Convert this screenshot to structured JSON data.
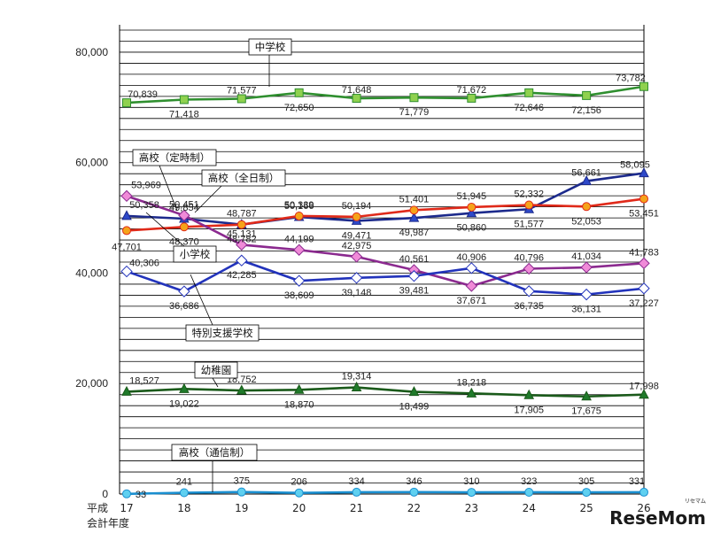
{
  "chart_data": {
    "type": "line",
    "title": "",
    "xlabel": "会計年度",
    "ylabel": "",
    "x_prefix": "平成",
    "categories": [
      "17",
      "18",
      "19",
      "20",
      "21",
      "22",
      "23",
      "24",
      "25",
      "26"
    ],
    "ylim": [
      0,
      84000
    ],
    "yticks": [
      0,
      20000,
      40000,
      60000,
      80000
    ],
    "ytick_labels": [
      "0",
      "20,000",
      "40,000",
      "60,000",
      "80,000"
    ],
    "grid": true,
    "series": [
      {
        "name": "中学校",
        "color": "#2f8f2f",
        "marker": "square",
        "marker_fill": "#8fd14f",
        "values": [
          70839,
          71418,
          71577,
          72650,
          71648,
          71779,
          71672,
          72646,
          72156,
          73782
        ],
        "labels": [
          "70,839",
          "71,418",
          "71,577",
          "72,650",
          "71,648",
          "71,779",
          "71,672",
          "72,646",
          "72,156",
          "73,782"
        ]
      },
      {
        "name": "高校（定時制）",
        "color": "#1c2a8c",
        "marker": "triangle",
        "marker_fill": "#2e49c9",
        "values": [
          50358,
          49854,
          48787,
          50166,
          49471,
          49987,
          50860,
          51577,
          56661,
          58095
        ],
        "labels": [
          "50,358",
          "49,854",
          "48,787",
          "50,166",
          "49,471",
          "49,987",
          "50,860",
          "51,577",
          "56,661",
          "58,095"
        ]
      },
      {
        "name": "高校（全日制）",
        "color": "#e02a1a",
        "marker": "circle",
        "marker_fill": "#f5a31a",
        "values": [
          47701,
          48370,
          48782,
          50339,
          50194,
          51401,
          51945,
          52332,
          52053,
          53451
        ],
        "labels": [
          "47,701",
          "48,370",
          "48,782",
          "50,339",
          "50,194",
          "51,401",
          "51,945",
          "52,332",
          "52,053",
          "53,451"
        ]
      },
      {
        "name": "小学校",
        "color": "#8b2a8f",
        "marker": "diamond",
        "marker_fill": "#f08ad8",
        "values": [
          53969,
          50451,
          45131,
          44199,
          42975,
          40561,
          37671,
          40796,
          41034,
          41783
        ],
        "labels": [
          "53,969",
          "50,451",
          "45,131",
          "44,199",
          "42,975",
          "40,561",
          "37,671",
          "40,796",
          "41,034",
          "41,783"
        ]
      },
      {
        "name": "特別支援学校",
        "color": "#2233bb",
        "marker": "diamond",
        "marker_fill": "#ffffff",
        "values": [
          40306,
          36686,
          42285,
          38609,
          39148,
          39481,
          40906,
          36735,
          36131,
          37227
        ],
        "labels": [
          "40,306",
          "36,686",
          "42,285",
          "38,609",
          "39,148",
          "39,481",
          "40,906",
          "36,735",
          "36,131",
          "37,227"
        ]
      },
      {
        "name": "幼稚園",
        "color": "#1a5a1a",
        "marker": "triangle",
        "marker_fill": "#1f7a2a",
        "values": [
          18527,
          19022,
          18752,
          18870,
          19314,
          18499,
          18218,
          17905,
          17675,
          17998
        ],
        "labels": [
          "18,527",
          "19,022",
          "18,752",
          "18,870",
          "19,314",
          "18,499",
          "18,218",
          "17,905",
          "17,675",
          "17,998"
        ]
      },
      {
        "name": "高校（通信制）",
        "color": "#1a8fd0",
        "marker": "circle",
        "marker_fill": "#5fd0f0",
        "values": [
          33,
          241,
          375,
          206,
          334,
          346,
          310,
          323,
          305,
          331
        ],
        "labels": [
          "33",
          "241",
          "375",
          "206",
          "334",
          "346",
          "310",
          "323",
          "305",
          "331"
        ]
      }
    ]
  },
  "watermark": {
    "main": "ReseMom",
    "sub": "リセマム"
  }
}
